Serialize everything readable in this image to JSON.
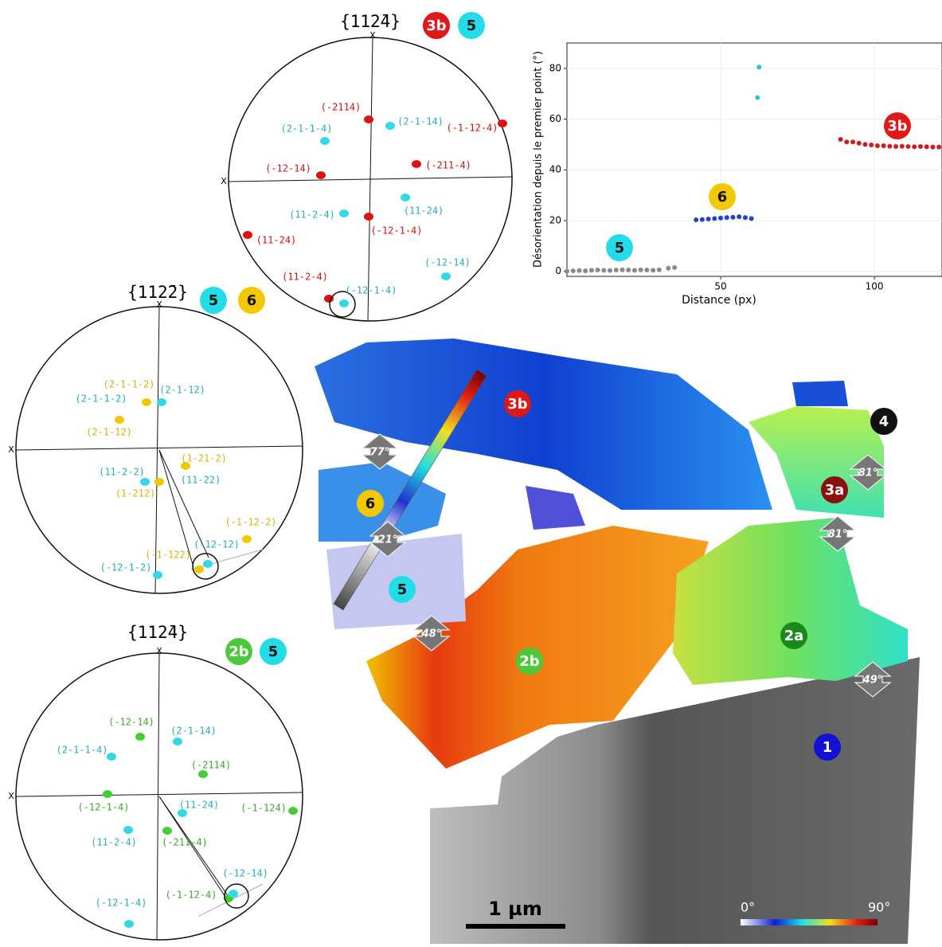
{
  "pole_figures": [
    {
      "title": "{112̄4}",
      "axis_label": "X",
      "badges": [
        {
          "text": "3b",
          "color": "#e01818"
        },
        {
          "text": "5",
          "color": "#22dde8"
        }
      ],
      "labels": [
        {
          "text": "(-2114)",
          "color": "#d01010"
        },
        {
          "text": "(2-1-14)",
          "color": "#22b0b8"
        },
        {
          "text": "(-1-12-4)",
          "color": "#d01010"
        },
        {
          "text": "(2-1-1-4)",
          "color": "#22b0b8"
        },
        {
          "text": "(-12-14)",
          "color": "#d01010"
        },
        {
          "text": "(-211-4)",
          "color": "#d01010"
        },
        {
          "text": "(11-2-4)",
          "color": "#22b0b8"
        },
        {
          "text": "(11-24)",
          "color": "#22b0b8"
        },
        {
          "text": "(-12-1-4)",
          "color": "#d01010"
        },
        {
          "text": "(11-24)",
          "color": "#d01010"
        },
        {
          "text": "(-12-14)",
          "color": "#22b0b8"
        },
        {
          "text": "(11-2-4)",
          "color": "#d01010"
        },
        {
          "text": "(-12-1-4)",
          "color": "#22b0b8"
        }
      ]
    },
    {
      "title": "{112̄2}",
      "axis_label": "X",
      "badges": [
        {
          "text": "5",
          "color": "#22dde8"
        },
        {
          "text": "6",
          "color": "#f2c800"
        }
      ],
      "labels": [
        {
          "text": "(2-1-1-2)",
          "color": "#e0b000"
        },
        {
          "text": "(2-1-12)",
          "color": "#22b0b8"
        },
        {
          "text": "(2-1-1-2)",
          "color": "#22b0b8"
        },
        {
          "text": "(2-1-12)",
          "color": "#e0b000"
        },
        {
          "text": "(1-21-2)",
          "color": "#e0b000"
        },
        {
          "text": "(11-2-2)",
          "color": "#22b0b8"
        },
        {
          "text": "(11-22)",
          "color": "#22b0b8"
        },
        {
          "text": "(1-212)",
          "color": "#e0b000"
        },
        {
          "text": "(-1-12-2)",
          "color": "#e0b000"
        },
        {
          "text": "(-12-12)",
          "color": "#22b0b8"
        },
        {
          "text": "(-1-122)",
          "color": "#e0b000"
        },
        {
          "text": "(-12-1-2)",
          "color": "#22b0b8"
        }
      ]
    },
    {
      "title": "{112̄4}",
      "axis_label": "X",
      "badges": [
        {
          "text": "2b",
          "color": "#4cc83c"
        },
        {
          "text": "5",
          "color": "#22dde8"
        }
      ],
      "labels": [
        {
          "text": "(-12-14)",
          "color": "#3aa82a"
        },
        {
          "text": "(2-1-14)",
          "color": "#22b0b8"
        },
        {
          "text": "(2-1-1-4)",
          "color": "#22b0b8"
        },
        {
          "text": "(-2114)",
          "color": "#3aa82a"
        },
        {
          "text": "(-12-1-4)",
          "color": "#3aa82a"
        },
        {
          "text": "(11-24)",
          "color": "#22b0b8"
        },
        {
          "text": "(-1-124)",
          "color": "#3aa82a"
        },
        {
          "text": "(11-2-4)",
          "color": "#22b0b8"
        },
        {
          "text": "(-211-4)",
          "color": "#3aa82a"
        },
        {
          "text": "(-12-14)",
          "color": "#22b0b8"
        },
        {
          "text": "(-1-12-4)",
          "color": "#3aa82a"
        },
        {
          "text": "(-12-1-4)",
          "color": "#22b0b8"
        }
      ]
    }
  ],
  "chart_data": {
    "type": "scatter",
    "x_label": "Distance (px)",
    "y_label": "Désorientation depuis le premier point (°)",
    "xlim": [
      0,
      122
    ],
    "ylim": [
      -2,
      90
    ],
    "xticks": [
      50,
      100
    ],
    "yticks": [
      0,
      20,
      40,
      60,
      80
    ],
    "series": [
      {
        "color": "#8a8a8a",
        "x": [
          0,
          2,
          4,
          6,
          8,
          10,
          12,
          14,
          16,
          18,
          20,
          22,
          24,
          26,
          28,
          30,
          33,
          35
        ],
        "values": [
          0,
          0.2,
          0.3,
          0.2,
          0.4,
          0.5,
          0.4,
          0.3,
          0.5,
          0.6,
          0.5,
          0.4,
          0.6,
          0.5,
          0.4,
          0.6,
          1.2,
          1.5
        ]
      },
      {
        "color": "#2444c8",
        "x": [
          42,
          44,
          46,
          48,
          50,
          52,
          54,
          56,
          58,
          60
        ],
        "values": [
          20.3,
          20.4,
          20.6,
          20.8,
          21,
          21.2,
          21.3,
          21.5,
          21.2,
          20.8
        ]
      },
      {
        "color": "#30c0d8",
        "x": [
          62,
          62.5
        ],
        "values": [
          68.5,
          80.5
        ]
      },
      {
        "color": "#c82020",
        "x": [
          89,
          91,
          93,
          95,
          97,
          99,
          101,
          103,
          105,
          107,
          109,
          111,
          113,
          115,
          117,
          119,
          121
        ],
        "values": [
          52,
          51,
          51,
          50.5,
          50,
          49.8,
          49.5,
          49.5,
          49.3,
          49.2,
          49.3,
          49.2,
          49.1,
          49.2,
          49.1,
          49,
          49
        ]
      }
    ],
    "annotations": [
      {
        "text": "5",
        "color": "#22dde8"
      },
      {
        "text": "6",
        "color": "#f2c800"
      },
      {
        "text": "3b",
        "color": "#e01818"
      }
    ]
  },
  "map": {
    "grains": [
      {
        "text": "3b",
        "color": "#e01818"
      },
      {
        "text": "6",
        "color": "#f2c800"
      },
      {
        "text": "5",
        "color": "#22dde8"
      },
      {
        "text": "2b",
        "color": "#4cc83c"
      },
      {
        "text": "2a",
        "color": "#1a8a1a"
      },
      {
        "text": "1",
        "color": "#1212d0"
      },
      {
        "text": "4",
        "color": "#111111"
      },
      {
        "text": "3a",
        "color": "#8b1010"
      }
    ],
    "angles": [
      "77°",
      "21°",
      "48°",
      "81°",
      "81°",
      "49°"
    ],
    "scale_bar": "1 µm",
    "colorbar": [
      "0°",
      "90°"
    ]
  }
}
